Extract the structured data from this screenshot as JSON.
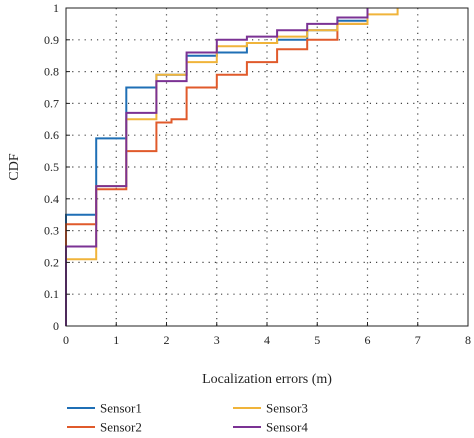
{
  "chart_data": {
    "type": "line",
    "step": true,
    "xlabel": "Localization errors (m)",
    "ylabel": "CDF",
    "xlim": [
      0,
      8
    ],
    "ylim": [
      0,
      1
    ],
    "xticks": [
      "0",
      "1",
      "2",
      "3",
      "4",
      "5",
      "6",
      "7",
      "8"
    ],
    "yticks": [
      "0",
      "0.1",
      "0.2",
      "0.3",
      "0.4",
      "0.5",
      "0.6",
      "0.7",
      "0.8",
      "0.9",
      "1"
    ],
    "grid": true,
    "legend_position": "bottom",
    "series": [
      {
        "name": "Sensor1",
        "color": "#1f6fb5",
        "x": [
          0,
          0.6,
          1.2,
          1.8,
          2.4,
          3.0,
          3.6,
          4.2,
          4.8,
          5.4,
          6.0
        ],
        "y": [
          0.35,
          0.59,
          0.75,
          0.79,
          0.85,
          0.86,
          0.89,
          0.9,
          0.93,
          0.96,
          1.0
        ]
      },
      {
        "name": "Sensor2",
        "color": "#e05a2b",
        "x": [
          0,
          0.6,
          1.2,
          1.8,
          2.1,
          2.4,
          3.0,
          3.6,
          4.2,
          4.8,
          5.4,
          6.0
        ],
        "y": [
          0.32,
          0.43,
          0.55,
          0.64,
          0.65,
          0.75,
          0.79,
          0.83,
          0.87,
          0.9,
          0.95,
          1.0
        ]
      },
      {
        "name": "Sensor3",
        "color": "#f0b43a",
        "x": [
          0,
          0.6,
          1.2,
          1.8,
          2.4,
          3.0,
          3.6,
          4.2,
          4.8,
          5.4,
          6.0,
          6.6
        ],
        "y": [
          0.21,
          0.44,
          0.65,
          0.79,
          0.83,
          0.88,
          0.89,
          0.91,
          0.93,
          0.95,
          0.98,
          1.0
        ]
      },
      {
        "name": "Sensor4",
        "color": "#7b3294",
        "x": [
          0,
          0.6,
          1.2,
          1.8,
          2.4,
          3.0,
          3.6,
          4.2,
          4.8,
          5.4,
          6.0
        ],
        "y": [
          0.25,
          0.44,
          0.67,
          0.77,
          0.86,
          0.9,
          0.91,
          0.93,
          0.95,
          0.97,
          1.0
        ]
      }
    ]
  }
}
